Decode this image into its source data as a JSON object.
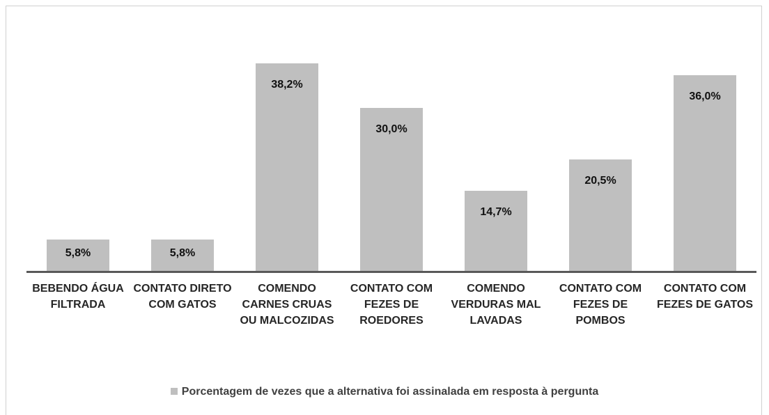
{
  "chart_data": {
    "type": "bar",
    "categories": [
      "BEBENDO ÁGUA FILTRADA",
      "CONTATO DIRETO COM GATOS",
      "COMENDO CARNES CRUAS OU MALCOZIDAS",
      "CONTATO COM FEZES DE ROEDORES",
      "COMENDO VERDURAS MAL LAVADAS",
      "CONTATO COM FEZES DE POMBOS",
      "CONTATO COM FEZES DE GATOS"
    ],
    "series": [
      {
        "name": "Porcentagem de vezes que a alternativa foi assinalada em resposta à pergunta",
        "color": "#bfbfbf",
        "values": [
          5.8,
          5.8,
          38.2,
          30.0,
          14.7,
          20.5,
          36.0
        ],
        "value_labels": [
          "5,8%",
          "5,8%",
          "38,2%",
          "30,0%",
          "14,7%",
          "20,5%",
          "36,0%"
        ]
      }
    ],
    "legend": "bottom"
  }
}
